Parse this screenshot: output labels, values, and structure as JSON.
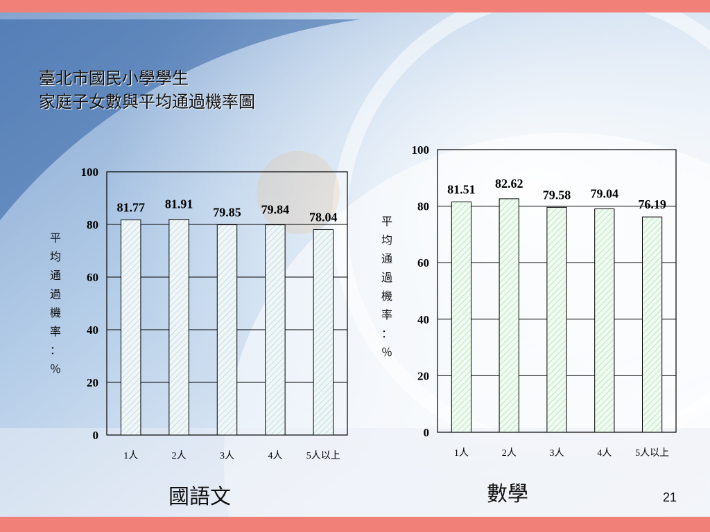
{
  "slide": {
    "title_line1": "臺北市國民小學學生",
    "title_line2": "家庭子女數與平均通過機率圖",
    "page_number": "21"
  },
  "colors": {
    "band": "#f08078",
    "chinese_bar_fill": "#eef6f8",
    "chinese_bar_hatch": "#bcd0d4",
    "math_bar_fill": "#effaf0",
    "math_bar_hatch": "#a8dcb0"
  },
  "chart_data": [
    {
      "type": "bar",
      "subject": "國語文",
      "ylabel_chars": [
        "平",
        "均",
        "通",
        "過",
        "機",
        "率",
        "：",
        "％"
      ],
      "categories": [
        "1人",
        "2人",
        "3人",
        "4人",
        "5人以上"
      ],
      "values": [
        81.77,
        81.91,
        79.85,
        79.84,
        78.04
      ],
      "value_labels": [
        "81.77",
        "81.91",
        "79.85",
        "79.84",
        "78.04"
      ],
      "yticks": [
        "0",
        "20",
        "40",
        "60",
        "80",
        "100"
      ],
      "ylim": [
        0,
        100
      ],
      "grid": true,
      "legend": "none"
    },
    {
      "type": "bar",
      "subject": "數學",
      "ylabel_chars": [
        "平",
        "均",
        "通",
        "過",
        "機",
        "率",
        "：",
        "％"
      ],
      "categories": [
        "1人",
        "2人",
        "3人",
        "4人",
        "5人以上"
      ],
      "values": [
        81.51,
        82.62,
        79.58,
        79.04,
        76.19
      ],
      "value_labels": [
        "81.51",
        "82.62",
        "79.58",
        "79.04",
        "76.19"
      ],
      "yticks": [
        "0",
        "20",
        "40",
        "60",
        "80",
        "100"
      ],
      "ylim": [
        0,
        100
      ],
      "grid": true,
      "legend": "none"
    }
  ]
}
